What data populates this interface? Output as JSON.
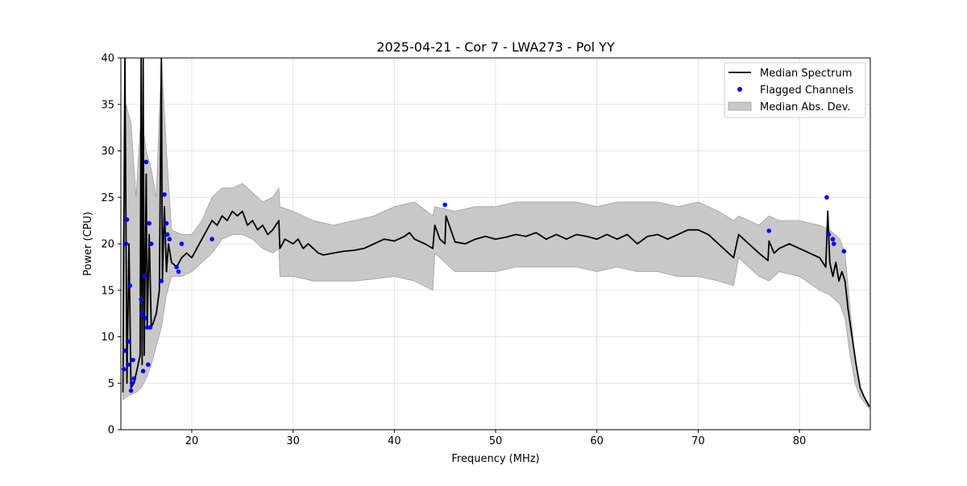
{
  "chart_data": {
    "type": "line",
    "title": "2025-04-21 - Cor 7 - LWA273 - Pol YY",
    "xlabel": "Frequency (MHz)",
    "ylabel": "Power (CPU)",
    "xlim": [
      13,
      87
    ],
    "ylim": [
      0,
      40
    ],
    "xticks": [
      20,
      30,
      40,
      50,
      60,
      70,
      80
    ],
    "yticks": [
      0,
      5,
      10,
      15,
      20,
      25,
      30,
      35,
      40
    ],
    "grid": true,
    "legend_position": "upper-right",
    "colors": {
      "median": "#000000",
      "flagged": "#0000ff",
      "band_fill": "#c8c8c8",
      "band_edge": "#a0a0a0"
    },
    "series": [
      {
        "name": "Median Spectrum",
        "kind": "line",
        "x": [
          13.2,
          13.4,
          13.6,
          13.8,
          14.0,
          14.3,
          14.6,
          14.9,
          15.0,
          15.1,
          15.2,
          15.3,
          15.5,
          15.6,
          15.8,
          16.0,
          16.2,
          16.5,
          16.8,
          17.0,
          17.1,
          17.3,
          17.5,
          17.7,
          18.0,
          18.5,
          19.0,
          19.5,
          20.0,
          20.5,
          21.0,
          21.5,
          22.0,
          22.5,
          23.0,
          23.5,
          24.0,
          24.5,
          25.0,
          25.5,
          26.0,
          26.5,
          27.0,
          27.5,
          28.0,
          28.6,
          28.7,
          29.2,
          30.0,
          30.5,
          31.0,
          31.5,
          32.0,
          32.5,
          33.0,
          34.0,
          35.0,
          36.0,
          37.0,
          38.0,
          39.0,
          40.0,
          41.0,
          41.5,
          42.0,
          43.0,
          43.8,
          44.0,
          44.5,
          45.0,
          45.1,
          46.0,
          47.0,
          48.0,
          49.0,
          50.0,
          51.0,
          52.0,
          53.0,
          54.0,
          55.0,
          56.0,
          57.0,
          58.0,
          59.0,
          60.0,
          61.0,
          62.0,
          63.0,
          64.0,
          65.0,
          66.0,
          67.0,
          68.0,
          69.0,
          70.0,
          71.0,
          72.0,
          73.0,
          73.5,
          74.0,
          75.0,
          76.0,
          76.9,
          77.0,
          77.5,
          78.0,
          79.0,
          80.0,
          81.0,
          82.0,
          82.6,
          82.8,
          83.0,
          83.3,
          83.6,
          83.9,
          84.2,
          84.5,
          84.8,
          85.2,
          85.6,
          86.0,
          86.4,
          86.9
        ],
        "y": [
          4.0,
          40.0,
          5.0,
          20.0,
          4.5,
          5.0,
          6.5,
          8.0,
          40.0,
          7.0,
          40.0,
          8.0,
          27.5,
          11.0,
          21.0,
          11.0,
          11.5,
          12.5,
          15.0,
          40.0,
          16.0,
          24.0,
          17.0,
          20.0,
          18.0,
          17.5,
          18.5,
          19.0,
          18.5,
          19.5,
          20.5,
          21.5,
          22.5,
          22.0,
          23.0,
          22.5,
          23.5,
          23.0,
          23.5,
          22.0,
          22.5,
          21.5,
          22.0,
          21.0,
          21.5,
          22.5,
          19.5,
          20.5,
          20.0,
          20.5,
          19.5,
          20.0,
          19.5,
          19.0,
          18.8,
          19.0,
          19.2,
          19.3,
          19.5,
          20.0,
          20.5,
          20.3,
          20.8,
          21.2,
          20.5,
          20.0,
          19.5,
          22.0,
          20.5,
          20.0,
          23.0,
          20.2,
          20.0,
          20.5,
          20.8,
          20.5,
          20.7,
          21.0,
          20.8,
          21.2,
          20.5,
          21.0,
          20.5,
          21.0,
          20.8,
          20.5,
          21.0,
          20.5,
          21.0,
          20.0,
          20.8,
          21.0,
          20.5,
          21.0,
          21.5,
          21.5,
          21.0,
          20.0,
          19.0,
          18.5,
          21.0,
          20.0,
          19.0,
          18.2,
          20.3,
          19.0,
          19.5,
          20.0,
          19.5,
          19.0,
          18.5,
          17.5,
          23.5,
          18.0,
          16.5,
          18.0,
          16.0,
          17.0,
          16.0,
          13.0,
          10.0,
          7.0,
          4.5,
          3.5,
          2.5
        ]
      },
      {
        "name": "Flagged Channels",
        "kind": "scatter",
        "x": [
          13.3,
          13.4,
          13.5,
          13.6,
          13.7,
          13.8,
          13.9,
          14.0,
          14.1,
          14.2,
          14.3,
          15.0,
          15.1,
          15.2,
          15.3,
          15.4,
          15.5,
          15.6,
          15.7,
          15.8,
          15.9,
          16.0,
          17.0,
          17.3,
          17.5,
          17.6,
          17.8,
          18.5,
          18.7,
          19.0,
          22.0,
          45.0,
          77.0,
          82.7,
          82.9,
          83.3,
          83.4,
          84.4
        ],
        "y": [
          6.5,
          8.5,
          20.0,
          22.6,
          7.0,
          9.5,
          15.5,
          4.2,
          5.0,
          7.5,
          5.5,
          14.0,
          12.5,
          6.3,
          16.5,
          12.0,
          28.8,
          11.0,
          7.0,
          22.2,
          11.0,
          20.0,
          16.0,
          25.3,
          22.2,
          21.0,
          20.5,
          17.5,
          17.0,
          20.0,
          20.5,
          24.2,
          21.4,
          25.0,
          21.0,
          20.5,
          20.0,
          19.2
        ]
      },
      {
        "name": "Median Abs. Dev.",
        "kind": "band",
        "x": [
          13.2,
          13.5,
          14.0,
          14.5,
          15.0,
          15.5,
          16.0,
          16.5,
          17.0,
          17.5,
          18.0,
          19.0,
          20.0,
          21.0,
          22.0,
          23.0,
          24.0,
          25.0,
          26.0,
          27.0,
          28.0,
          28.6,
          28.7,
          30.0,
          32.0,
          34.0,
          36.0,
          38.0,
          40.0,
          42.0,
          43.8,
          44.0,
          46.0,
          48.0,
          50.0,
          52.0,
          54.0,
          56.0,
          58.0,
          60.0,
          62.0,
          64.0,
          66.0,
          68.0,
          70.0,
          72.0,
          73.5,
          74.0,
          76.0,
          77.0,
          78.0,
          80.0,
          82.0,
          83.0,
          84.0,
          84.5,
          85.0,
          85.5,
          86.0,
          86.5,
          86.9
        ],
        "lower": [
          3.2,
          3.5,
          3.8,
          4.0,
          4.5,
          5.5,
          7.0,
          9.0,
          11.0,
          14.5,
          16.5,
          16.5,
          17.0,
          18.0,
          19.0,
          20.5,
          21.0,
          21.0,
          20.5,
          19.5,
          19.0,
          19.5,
          16.5,
          16.5,
          16.0,
          16.0,
          16.0,
          16.2,
          16.5,
          16.0,
          15.0,
          19.0,
          17.0,
          17.0,
          17.0,
          17.5,
          17.5,
          17.5,
          17.5,
          17.0,
          17.5,
          17.0,
          17.0,
          16.5,
          16.5,
          16.0,
          15.5,
          18.5,
          16.5,
          16.0,
          17.0,
          16.5,
          15.0,
          14.5,
          13.5,
          12.0,
          8.0,
          5.0,
          3.5,
          2.8,
          2.3
        ],
        "upper": [
          20.0,
          35.0,
          33.0,
          25.0,
          34.0,
          30.0,
          28.0,
          25.0,
          40.0,
          30.0,
          21.5,
          21.0,
          21.0,
          22.5,
          25.0,
          26.0,
          26.0,
          26.5,
          25.5,
          24.5,
          25.0,
          26.0,
          24.0,
          23.5,
          22.5,
          22.0,
          22.5,
          23.0,
          24.0,
          24.5,
          23.0,
          24.0,
          23.5,
          24.0,
          24.0,
          24.5,
          24.5,
          24.5,
          24.5,
          24.0,
          24.5,
          24.5,
          24.5,
          24.0,
          24.5,
          23.5,
          22.5,
          23.0,
          22.0,
          23.0,
          22.5,
          22.5,
          22.0,
          21.5,
          20.5,
          19.0,
          13.0,
          7.5,
          4.5,
          3.3,
          2.7
        ]
      }
    ],
    "legend": [
      {
        "label": "Median Spectrum",
        "kind": "line"
      },
      {
        "label": "Flagged Channels",
        "kind": "scatter"
      },
      {
        "label": "Median Abs. Dev.",
        "kind": "band"
      }
    ]
  }
}
